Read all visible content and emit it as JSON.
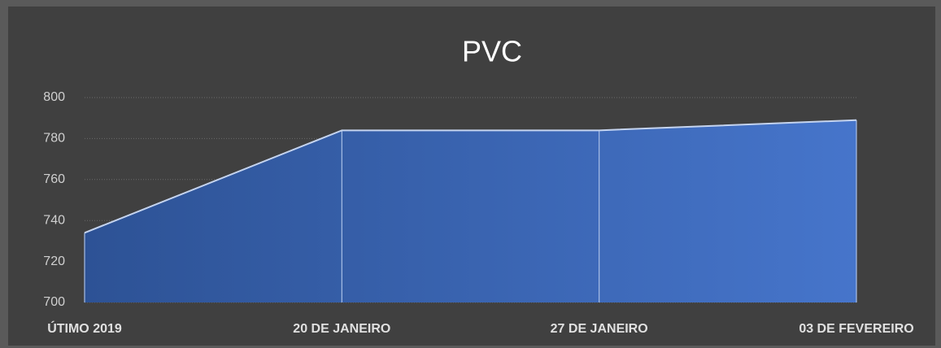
{
  "chart_data": {
    "type": "area",
    "title": "PVC",
    "categories": [
      "ÚTIMO 2019",
      "20 DE JANEIRO",
      "27 DE JANEIRO",
      "03 DE FEVEREIRO"
    ],
    "series": [
      {
        "name": "PVC",
        "color": "#4472c4",
        "values": [
          734,
          784,
          784,
          789
        ]
      }
    ],
    "ylim": [
      700,
      800
    ],
    "yticks": [
      700,
      720,
      740,
      760,
      780,
      800
    ],
    "grid": true
  }
}
